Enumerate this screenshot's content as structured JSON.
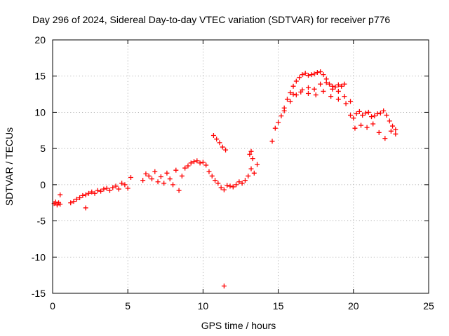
{
  "chart_data": {
    "type": "scatter",
    "title": "Day 296 of 2024, Sidereal Day-to-day VTEC variation (SDTVAR) for receiver p776",
    "xlabel": "GPS time / hours",
    "ylabel": "SDTVAR / TECUs",
    "xlim": [
      0,
      25
    ],
    "ylim": [
      -15,
      20
    ],
    "xticks": [
      0,
      5,
      10,
      15,
      20,
      25
    ],
    "xtick_labels": [
      "0",
      "5",
      "10",
      "15",
      "20",
      "25"
    ],
    "yticks": [
      -15,
      -10,
      -5,
      0,
      5,
      10,
      15,
      20
    ],
    "ytick_labels": [
      "-15",
      "-10",
      "-5",
      "0",
      "5",
      "10",
      "15",
      "20"
    ],
    "grid": true,
    "marker": "+",
    "color": "#ff0000",
    "series": [
      {
        "name": "SDTVAR",
        "x": [
          0.1,
          0.2,
          0.3,
          0.4,
          0.5,
          1.2,
          1.4,
          1.6,
          1.8,
          2.0,
          2.2,
          2.4,
          2.6,
          2.8,
          3.0,
          3.2,
          3.4,
          3.6,
          3.8,
          4.0,
          4.2,
          4.4,
          4.6,
          4.8,
          5.0,
          5.2,
          6.0,
          6.2,
          6.4,
          6.6,
          6.8,
          7.0,
          7.2,
          7.4,
          7.6,
          7.8,
          8.0,
          8.2,
          8.4,
          8.6,
          8.8,
          9.0,
          9.2,
          9.4,
          9.6,
          9.8,
          10.0,
          10.2,
          10.4,
          10.6,
          10.8,
          11.0,
          11.2,
          11.4,
          10.7,
          10.9,
          11.1,
          11.3,
          11.5,
          11.4,
          11.6,
          11.8,
          12.0,
          12.2,
          12.4,
          12.6,
          12.8,
          13.0,
          13.2,
          13.4,
          13.6,
          13.1,
          13.2,
          13.3,
          14.6,
          14.8,
          15.0,
          15.2,
          15.4,
          15.6,
          15.8,
          16.0,
          16.2,
          16.4,
          16.6,
          16.8,
          17.0,
          17.2,
          17.4,
          17.6,
          17.8,
          18.0,
          18.2,
          18.4,
          18.6,
          18.8,
          19.0,
          19.2,
          19.4,
          15.4,
          15.8,
          16.2,
          16.6,
          17.0,
          17.4,
          17.8,
          18.2,
          18.6,
          19.0,
          19.4,
          19.8,
          16.0,
          16.5,
          17.0,
          17.5,
          18.0,
          18.5,
          19.0,
          19.5,
          19.8,
          20.0,
          20.2,
          20.4,
          20.6,
          20.8,
          21.0,
          21.2,
          21.4,
          21.6,
          21.8,
          22.0,
          22.2,
          22.4,
          22.6,
          22.8,
          20.1,
          20.5,
          20.9,
          21.3,
          21.7,
          22.1,
          22.5,
          22.8,
          0.5,
          2.2
        ],
        "y": [
          -2.6,
          -2.4,
          -2.8,
          -2.5,
          -2.7,
          -2.5,
          -2.3,
          -2.0,
          -1.8,
          -1.5,
          -1.4,
          -1.2,
          -1.0,
          -1.2,
          -0.8,
          -0.9,
          -0.6,
          -0.5,
          -0.8,
          -0.4,
          -0.2,
          -0.6,
          0.2,
          0.0,
          -0.5,
          1.0,
          0.6,
          1.5,
          1.2,
          0.8,
          1.8,
          0.4,
          1.1,
          0.2,
          1.6,
          0.8,
          0.0,
          2.0,
          -0.8,
          1.2,
          2.3,
          2.6,
          3.0,
          3.2,
          3.3,
          3.0,
          3.1,
          2.7,
          1.8,
          1.2,
          0.6,
          0.2,
          -0.4,
          -0.7,
          6.8,
          6.3,
          5.8,
          5.2,
          4.8,
          -14.0,
          -0.1,
          -0.2,
          -0.3,
          0.0,
          0.4,
          0.2,
          0.6,
          1.2,
          2.2,
          1.6,
          2.8,
          4.2,
          4.6,
          3.6,
          6.0,
          7.8,
          8.6,
          9.5,
          10.6,
          11.8,
          12.7,
          13.6,
          14.3,
          14.8,
          15.2,
          15.4,
          15.1,
          15.2,
          15.3,
          15.5,
          15.6,
          15.2,
          14.6,
          13.9,
          13.2,
          13.5,
          13.8,
          13.6,
          13.9,
          10.2,
          11.5,
          12.4,
          13.1,
          13.4,
          13.2,
          13.9,
          14.1,
          13.6,
          12.9,
          12.2,
          11.5,
          12.5,
          12.8,
          12.6,
          12.4,
          12.9,
          12.2,
          11.8,
          11.2,
          9.6,
          9.2,
          9.8,
          10.1,
          9.6,
          9.9,
          10.0,
          9.4,
          9.5,
          9.8,
          9.9,
          10.2,
          9.6,
          8.8,
          8.1,
          7.6,
          7.8,
          8.2,
          7.9,
          8.4,
          7.2,
          6.4,
          7.4,
          7.0,
          -1.4,
          -3.2
        ]
      }
    ]
  }
}
